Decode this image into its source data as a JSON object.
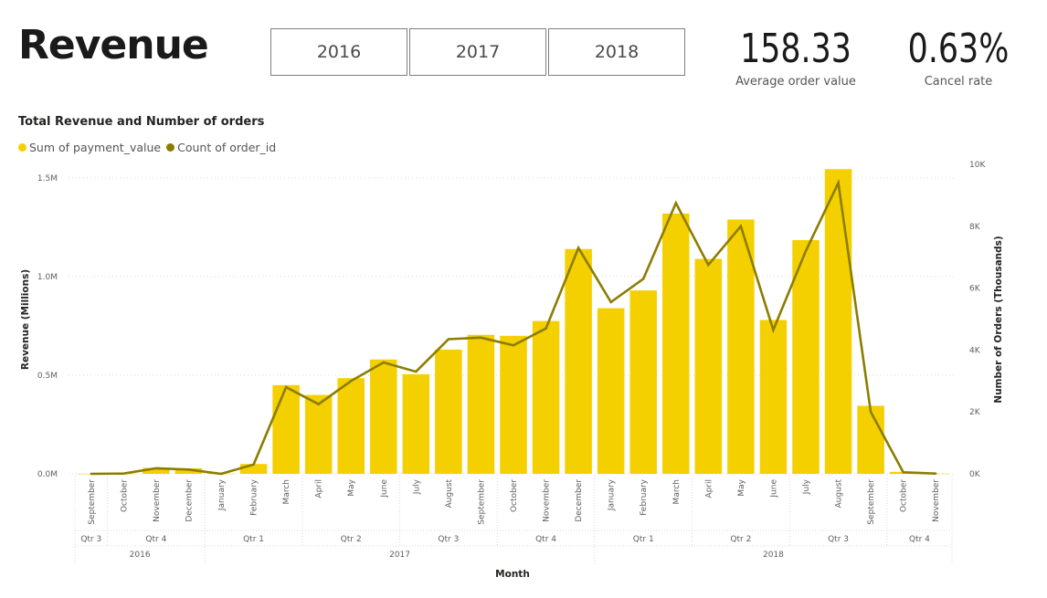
{
  "header": {
    "title": "Revenue",
    "year_buttons": [
      "2016",
      "2017",
      "2018"
    ]
  },
  "kpis": {
    "average_order_value": {
      "value": "158.33",
      "label": "Average order value"
    },
    "cancel_rate": {
      "value": "0.63%",
      "label": "Cancel rate"
    }
  },
  "colors": {
    "bar": "#F5D000",
    "line": "#8C7D00",
    "gridline": "#DADADA"
  },
  "chart_data": {
    "type": "bar+line",
    "title": "Total Revenue and Number of orders",
    "legend_position": "top-left",
    "grid": true,
    "xlabel": "Month",
    "ylabel": "Revenue (Millions)",
    "y2label": "Number of Orders (Thousands)",
    "ylim": [
      0,
      1500000
    ],
    "y2lim": [
      0,
      10000
    ],
    "y_ticks": [
      "0.0M",
      "0.5M",
      "1.0M",
      "1.5M"
    ],
    "y2_ticks": [
      "0K",
      "2K",
      "4K",
      "6K",
      "8K",
      "10K"
    ],
    "categories": [
      "September",
      "October",
      "November",
      "December",
      "January",
      "February",
      "March",
      "April",
      "May",
      "June",
      "July",
      "August",
      "September",
      "October",
      "November",
      "December",
      "January",
      "February",
      "March",
      "April",
      "May",
      "June",
      "July",
      "August",
      "September",
      "October",
      "November"
    ],
    "quarters": [
      {
        "label": "Qtr 3",
        "span": 1
      },
      {
        "label": "Qtr 4",
        "span": 3
      },
      {
        "label": "Qtr 1",
        "span": 3
      },
      {
        "label": "Qtr 2",
        "span": 3
      },
      {
        "label": "Qtr 3",
        "span": 3
      },
      {
        "label": "Qtr 4",
        "span": 3
      },
      {
        "label": "Qtr 1",
        "span": 3
      },
      {
        "label": "Qtr 2",
        "span": 3
      },
      {
        "label": "Qtr 3",
        "span": 3
      },
      {
        "label": "Qtr 4",
        "span": 2
      }
    ],
    "years": [
      {
        "label": "2016",
        "span": 4
      },
      {
        "label": "2017",
        "span": 12
      },
      {
        "label": "2018",
        "span": 11
      }
    ],
    "series": [
      {
        "name": "Sum of payment_value",
        "type": "bar",
        "axis": "left",
        "values": [
          500,
          1000,
          30000,
          28000,
          1000,
          50000,
          450000,
          400000,
          485000,
          580000,
          505000,
          630000,
          705000,
          700000,
          775000,
          1140000,
          840000,
          930000,
          1320000,
          1090000,
          1290000,
          780000,
          1185000,
          1545000,
          345000,
          10000,
          1000
        ]
      },
      {
        "name": "Count of order_id",
        "type": "line",
        "axis": "right",
        "values": [
          0,
          10,
          180,
          140,
          0,
          300,
          2800,
          2250,
          3000,
          3600,
          3300,
          4350,
          4400,
          4150,
          4700,
          7300,
          5550,
          6300,
          8750,
          6750,
          8000,
          4650,
          7200,
          9400,
          2000,
          50,
          10
        ]
      }
    ]
  }
}
